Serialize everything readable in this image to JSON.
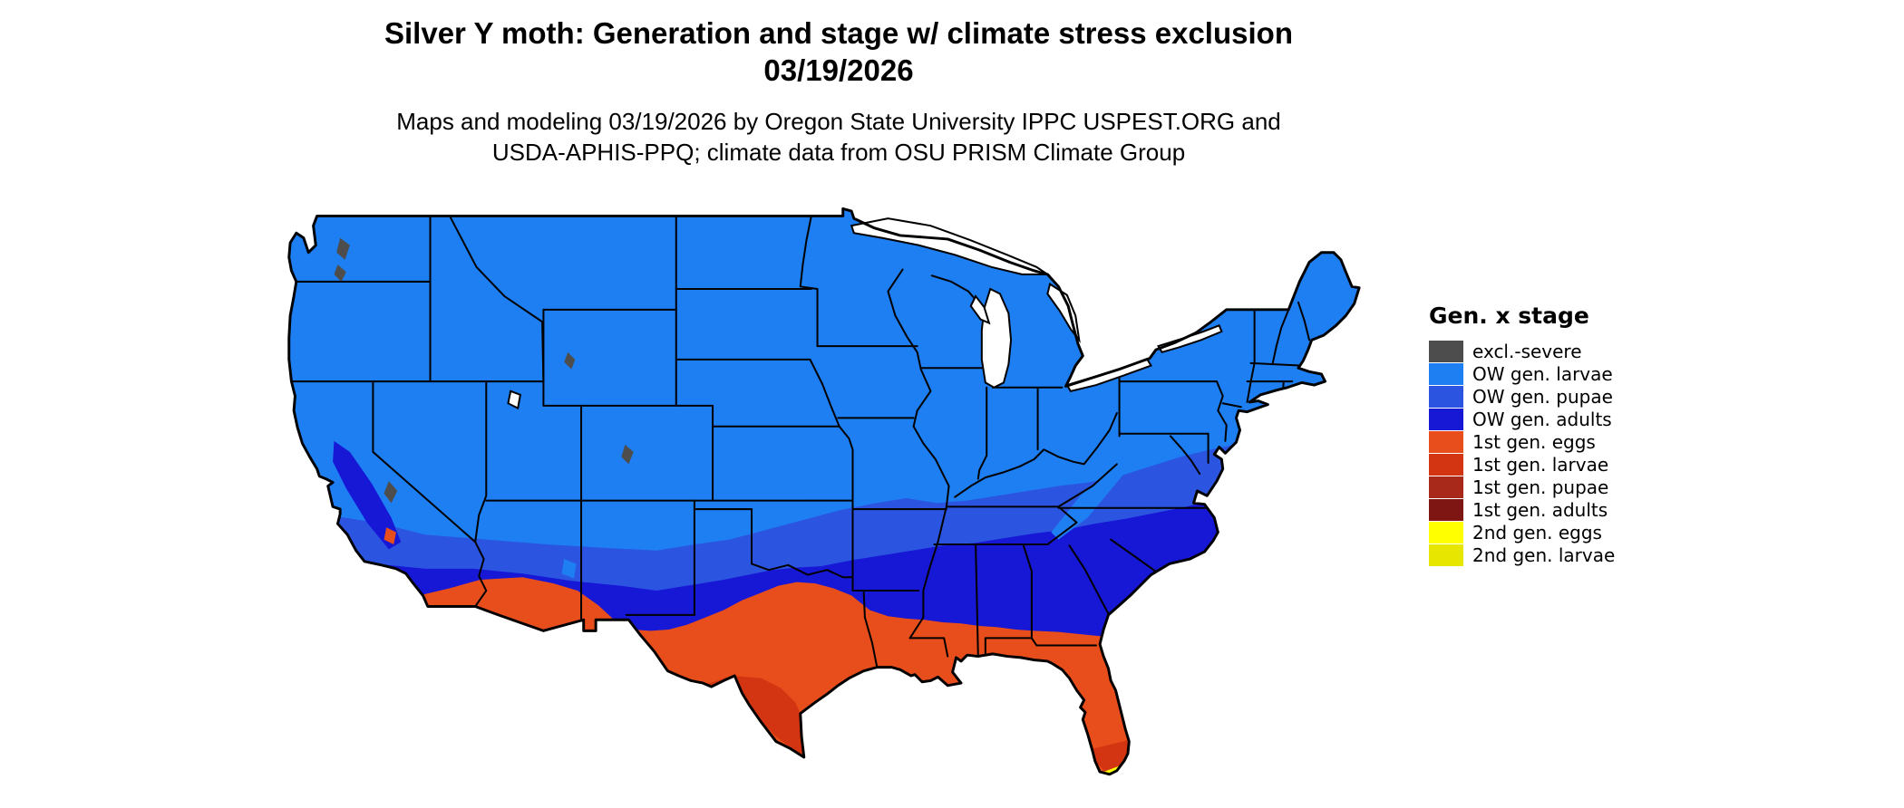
{
  "header": {
    "title_line1": "Silver Y moth: Generation and stage w/ climate stress exclusion",
    "title_line2": "03/19/2026",
    "subtitle_line1": "Maps and modeling 03/19/2026 by Oregon State University IPPC USPEST.ORG and",
    "subtitle_line2": "USDA-APHIS-PPQ; climate data from OSU PRISM Climate Group"
  },
  "legend": {
    "title": "Gen. x stage",
    "items": [
      {
        "label": "excl.-severe",
        "color": "#4D4D4D"
      },
      {
        "label": "OW gen. larvae",
        "color": "#1E7FF2"
      },
      {
        "label": "OW gen. pupae",
        "color": "#2B55E0"
      },
      {
        "label": "OW gen. adults",
        "color": "#1717D6"
      },
      {
        "label": "1st gen. eggs",
        "color": "#E84E1B"
      },
      {
        "label": "1st gen. larvae",
        "color": "#D33512"
      },
      {
        "label": "1st gen. pupae",
        "color": "#A8291A"
      },
      {
        "label": "1st gen. adults",
        "color": "#7E1713"
      },
      {
        "label": "2nd gen. eggs",
        "color": "#FFFF00"
      },
      {
        "label": "2nd gen. larvae",
        "color": "#E6E600"
      }
    ]
  },
  "map": {
    "description": "Contiguous United States map colored by Silver Y moth generation and stage"
  }
}
